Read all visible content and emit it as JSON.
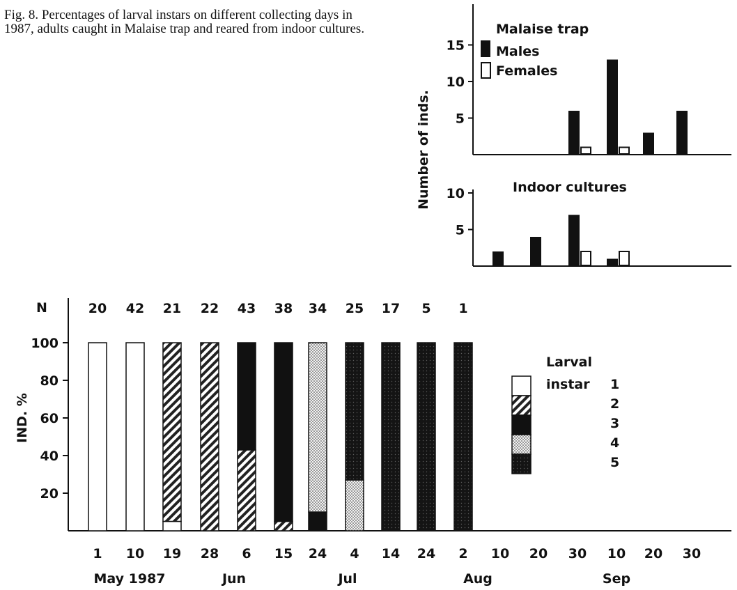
{
  "caption": "Fig. 8. Percentages of larval instars on different collecting days in 1987, adults caught in Malaise trap and reared from indoor cultures.",
  "chart_data": [
    {
      "type": "bar",
      "title": "Malaise trap",
      "ylabel": "Number of inds.",
      "ylim": [
        0,
        20
      ],
      "yticks": [
        "5",
        "10",
        "15"
      ],
      "categories": [
        "Jul 24",
        "Aug 2",
        "Aug 10",
        "Aug 20",
        "Aug 30",
        "Sep 10",
        "Sep 20",
        "Sep 30"
      ],
      "series": [
        {
          "name": "Males",
          "values": [
            0,
            0,
            0,
            0,
            6,
            13,
            3,
            6
          ]
        },
        {
          "name": "Females",
          "values": [
            0,
            0,
            0,
            0,
            1,
            1,
            0,
            0
          ]
        }
      ]
    },
    {
      "type": "bar",
      "title": "Indoor cultures",
      "ylim": [
        0,
        10
      ],
      "yticks": [
        "5",
        "10"
      ],
      "categories": [
        "Jul 24",
        "Aug 2",
        "Aug 10",
        "Aug 20",
        "Aug 30",
        "Sep 10",
        "Sep 20",
        "Sep 30"
      ],
      "series": [
        {
          "name": "Males",
          "values": [
            0,
            0,
            2,
            4,
            7,
            1,
            0,
            0
          ]
        },
        {
          "name": "Females",
          "values": [
            0,
            0,
            0,
            0,
            2,
            2,
            0,
            0
          ]
        }
      ]
    },
    {
      "type": "bar",
      "ylabel": "IND. %",
      "ylim": [
        0,
        100
      ],
      "yticks": [
        "20",
        "40",
        "60",
        "80",
        "100"
      ],
      "n_label": "N",
      "n_values": [
        "20",
        "42",
        "21",
        "22",
        "43",
        "38",
        "34",
        "25",
        "17",
        "5",
        "1"
      ],
      "x_ticks": [
        "1",
        "10",
        "19",
        "28",
        "6",
        "15",
        "24",
        "4",
        "14",
        "24",
        "2",
        "10",
        "20",
        "30",
        "10",
        "20",
        "30"
      ],
      "month_labels": [
        "May 1987",
        "Jun",
        "Jul",
        "Aug",
        "Sep"
      ],
      "legend_title": "Larval",
      "legend_subtitle": "instar",
      "legend_labels": [
        "1",
        "2",
        "3",
        "4",
        "5"
      ],
      "stacks": [
        [
          100,
          0,
          0,
          0,
          0
        ],
        [
          100,
          0,
          0,
          0,
          0
        ],
        [
          5,
          95,
          0,
          0,
          0
        ],
        [
          0,
          100,
          0,
          0,
          0
        ],
        [
          0,
          43,
          57,
          0,
          0
        ],
        [
          0,
          5,
          95,
          0,
          0
        ],
        [
          0,
          0,
          10,
          90,
          0
        ],
        [
          0,
          0,
          0,
          27,
          73
        ],
        [
          0,
          0,
          0,
          0,
          100
        ],
        [
          0,
          0,
          0,
          0,
          100
        ],
        [
          0,
          0,
          0,
          0,
          100
        ]
      ]
    }
  ]
}
